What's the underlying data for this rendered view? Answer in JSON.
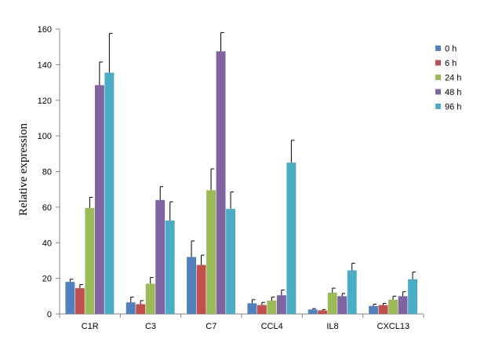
{
  "chart_data": {
    "type": "bar",
    "title": "",
    "xlabel": "",
    "ylabel": "Relative expression",
    "ylim": [
      0,
      160
    ],
    "yticks": [
      0,
      20,
      40,
      60,
      80,
      100,
      120,
      140,
      160
    ],
    "grid": false,
    "legend_position": "right",
    "categories": [
      "C1R",
      "C3",
      "C7",
      "CCL4",
      "IL8",
      "CXCL13"
    ],
    "series": [
      {
        "name": "0 h",
        "color": "#4f81bd",
        "values": [
          18,
          6.5,
          32,
          6,
          2.5,
          4.5
        ],
        "errors": [
          1.5,
          3,
          9,
          2,
          0.5,
          1
        ]
      },
      {
        "name": "6 h",
        "color": "#c0504d",
        "values": [
          14.5,
          5.5,
          27.5,
          5,
          2,
          5
        ],
        "errors": [
          2,
          2,
          5.5,
          1.5,
          0.5,
          1
        ]
      },
      {
        "name": "24 h",
        "color": "#9bbb59",
        "values": [
          59.5,
          17,
          69.5,
          7.5,
          12,
          8
        ],
        "errors": [
          6,
          3.5,
          12,
          2,
          2.5,
          2
        ]
      },
      {
        "name": "48 h",
        "color": "#8064a2",
        "values": [
          128.5,
          64,
          147.5,
          10.5,
          10,
          10
        ],
        "errors": [
          13,
          7.5,
          10.5,
          3,
          1.5,
          2.5
        ]
      },
      {
        "name": "96 h",
        "color": "#4bacc6",
        "values": [
          135.5,
          52.5,
          59,
          85,
          24.5,
          19.5
        ],
        "errors": [
          22,
          10.5,
          9.5,
          12.5,
          4,
          4
        ]
      }
    ]
  }
}
